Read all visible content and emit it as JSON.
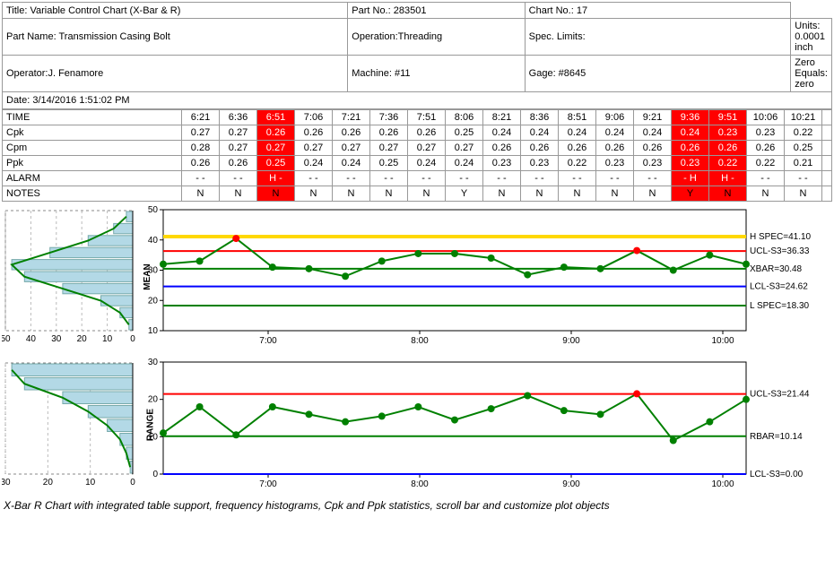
{
  "header": {
    "title": "Title: Variable Control Chart (X-Bar & R)",
    "partNo": "Part No.: 283501",
    "chartNo": "Chart No.: 17",
    "partName": "Part Name: Transmission Casing Bolt",
    "operation": "Operation:Threading",
    "specLimits": "Spec. Limits:",
    "units": "Units: 0.0001 inch",
    "operator": "Operator:J. Fenamore",
    "machine": "Machine: #11",
    "gage": "Gage: #8645",
    "zeroEquals": "Zero Equals: zero",
    "date": "Date: 3/14/2016 1:51:02 PM"
  },
  "table": {
    "rowLabels": [
      "TIME",
      "Cpk",
      "Cpm",
      "Ppk",
      "ALARM",
      "NOTES"
    ],
    "times": [
      "6:21",
      "6:36",
      "6:51",
      "7:06",
      "7:21",
      "7:36",
      "7:51",
      "8:06",
      "8:21",
      "8:36",
      "8:51",
      "9:06",
      "9:21",
      "9:36",
      "9:51",
      "10:06",
      "10:21"
    ],
    "cpk": [
      "0.27",
      "0.27",
      "0.26",
      "0.26",
      "0.26",
      "0.26",
      "0.26",
      "0.25",
      "0.24",
      "0.24",
      "0.24",
      "0.24",
      "0.24",
      "0.24",
      "0.23",
      "0.23",
      "0.22"
    ],
    "cpm": [
      "0.28",
      "0.27",
      "0.27",
      "0.27",
      "0.27",
      "0.27",
      "0.27",
      "0.27",
      "0.26",
      "0.26",
      "0.26",
      "0.26",
      "0.26",
      "0.26",
      "0.26",
      "0.26",
      "0.25"
    ],
    "ppk": [
      "0.26",
      "0.26",
      "0.25",
      "0.24",
      "0.24",
      "0.25",
      "0.24",
      "0.24",
      "0.23",
      "0.23",
      "0.22",
      "0.23",
      "0.23",
      "0.23",
      "0.22",
      "0.22",
      "0.21"
    ],
    "alarm": [
      "-  -",
      "-  -",
      "H  -",
      "-  -",
      "-  -",
      "-  -",
      "-  -",
      "-  -",
      "-  -",
      "-  -",
      "-  -",
      "-  -",
      "-  -",
      "-  H",
      "H  -",
      "-  -",
      "-  -"
    ],
    "notes": [
      "N",
      "N",
      "N",
      "N",
      "N",
      "N",
      "N",
      "Y",
      "N",
      "N",
      "N",
      "N",
      "N",
      "Y",
      "N",
      "N",
      "N"
    ],
    "alarmCols": [
      2,
      13,
      14
    ],
    "notesAlarmCols": [
      2,
      13,
      14
    ]
  },
  "meanChart": {
    "ylabel": "MEAN",
    "ylim": [
      10,
      50
    ],
    "yticks": [
      10,
      20,
      30,
      40,
      50
    ],
    "xticks": [
      "7:00",
      "8:00",
      "9:00",
      "10:00"
    ],
    "hlines": [
      {
        "y": 41.1,
        "color": "#ffd800",
        "width": 4,
        "label": "H SPEC=41.10"
      },
      {
        "y": 36.33,
        "color": "#ff0000",
        "width": 2,
        "label": "UCL-S3=36.33"
      },
      {
        "y": 30.48,
        "color": "#008000",
        "width": 2,
        "label": "XBAR=30.48"
      },
      {
        "y": 24.62,
        "color": "#0000ff",
        "width": 2,
        "label": "LCL-S3=24.62"
      },
      {
        "y": 18.3,
        "color": "#008000",
        "width": 2,
        "label": "L SPEC=18.30"
      }
    ],
    "data": [
      32,
      33,
      40.5,
      31,
      30.5,
      28,
      33,
      35.5,
      35.5,
      34,
      28.5,
      31,
      30.5,
      36.5,
      30,
      35,
      32
    ],
    "outliers": [
      2,
      13
    ],
    "lineColor": "#008000",
    "markerColor": "#008000",
    "outlierColor": "#ff0000"
  },
  "rangeChart": {
    "ylabel": "RANGE",
    "ylim": [
      0,
      30
    ],
    "yticks": [
      0,
      10,
      20,
      30
    ],
    "xticks": [
      "7:00",
      "8:00",
      "9:00",
      "10:00"
    ],
    "hlines": [
      {
        "y": 21.44,
        "color": "#ff0000",
        "width": 2,
        "label": "UCL-S3=21.44"
      },
      {
        "y": 10.14,
        "color": "#008000",
        "width": 2,
        "label": "RBAR=10.14"
      },
      {
        "y": 0.0,
        "color": "#0000ff",
        "width": 2,
        "label": "LCL-S3=0.00"
      }
    ],
    "data": [
      11,
      18,
      10.5,
      18,
      16,
      14,
      15.5,
      18,
      14.5,
      17.5,
      21,
      17,
      16,
      21.5,
      9,
      14,
      20
    ],
    "outliers": [
      13
    ],
    "lineColor": "#008000",
    "markerColor": "#008000",
    "outlierColor": "#ff0000"
  },
  "histMean": {
    "xticks": [
      "50",
      "40",
      "30",
      "20",
      "10",
      "0"
    ],
    "bars": [
      0.05,
      0.15,
      0.35,
      0.65,
      0.95,
      0.85,
      0.55,
      0.25,
      0.1,
      0.03
    ],
    "barColor": "#b3d9e6",
    "curveColor": "#008000"
  },
  "histRange": {
    "xticks": [
      "30",
      "20",
      "10",
      "0"
    ],
    "bars": [
      0.95,
      0.85,
      0.55,
      0.35,
      0.2,
      0.1,
      0.05,
      0.02
    ],
    "barColor": "#b3d9e6",
    "curveColor": "#008000"
  },
  "caption": "X-Bar R Chart with integrated table support, frequency histograms, Cpk and Ppk statistics, scroll bar and customize plot objects",
  "colors": {
    "grid": "#c0c0c0",
    "axis": "#000",
    "bg": "#fff"
  }
}
